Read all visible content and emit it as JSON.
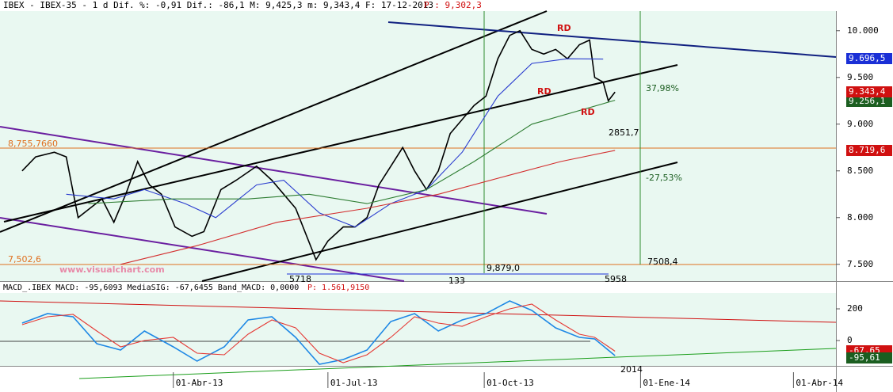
{
  "chart_data": [
    {
      "type": "line",
      "title": "IBEX - IBEX-35 -  1 d Dif. %: -0,91 Dif.: -86,1 M: 9,425,3 m: 9,343,4 F: 17-12-2013",
      "price_label": "P : 9,302,3",
      "xlim": [
        "2012-12-20",
        "2014-04-26"
      ],
      "xticks": [
        {
          "value": "2013-04-01",
          "label": "01-Abr-13"
        },
        {
          "value": "2013-07-01",
          "label": "01-Jul-13"
        },
        {
          "value": "2013-10-01",
          "label": "01-Oct-13"
        },
        {
          "value": "2014-01-01",
          "label": "01-Ene-14"
        },
        {
          "value": "2014-04-01",
          "label": "01-Abr-14"
        }
      ],
      "ylim": [
        7320,
        10210
      ],
      "yticks": [
        {
          "value": 7500,
          "label": "7.500"
        },
        {
          "value": 8000,
          "label": "8.000"
        },
        {
          "value": 8500,
          "label": "8.500"
        },
        {
          "value": 9000,
          "label": "9.000"
        },
        {
          "value": 9500,
          "label": "9.500"
        },
        {
          "value": 10000,
          "label": "10.000"
        }
      ],
      "series": [
        {
          "color": "#000000",
          "x": [
            "2013-01-02",
            "2013-01-10",
            "2013-01-21",
            "2013-01-28",
            "2013-02-04",
            "2013-02-11",
            "2013-02-18",
            "2013-02-25",
            "2013-03-04",
            "2013-03-11",
            "2013-03-18",
            "2013-03-25",
            "2013-04-02",
            "2013-04-12",
            "2013-04-19",
            "2013-04-29",
            "2013-05-08",
            "2013-05-20",
            "2013-05-29",
            "2013-06-05",
            "2013-06-12",
            "2013-06-24",
            "2013-07-01",
            "2013-07-10",
            "2013-07-17",
            "2013-07-24",
            "2013-07-31",
            "2013-08-07",
            "2013-08-14",
            "2013-08-21",
            "2013-08-28",
            "2013-09-04",
            "2013-09-11",
            "2013-09-18",
            "2013-09-25",
            "2013-10-02",
            "2013-10-09",
            "2013-10-16",
            "2013-10-22",
            "2013-10-29",
            "2013-11-05",
            "2013-11-12",
            "2013-11-19",
            "2013-11-26",
            "2013-12-02",
            "2013-12-05",
            "2013-12-10",
            "2013-12-13",
            "2013-12-17"
          ],
          "values": [
            8500,
            8650,
            8700,
            8650,
            8000,
            8100,
            8200,
            7950,
            8250,
            8600,
            8350,
            8250,
            7900,
            7800,
            7850,
            8300,
            8400,
            8550,
            8400,
            8250,
            8100,
            7550,
            7750,
            7900,
            7900,
            8000,
            8350,
            8550,
            8750,
            8500,
            8300,
            8500,
            8900,
            9050,
            9200,
            9300,
            9700,
            9950,
            10000,
            9800,
            9750,
            9800,
            9700,
            9850,
            9900,
            9500,
            9450,
            9250,
            9343.4
          ]
        },
        {
          "color": "#2a3ccf",
          "x": [
            "2013-01-28",
            "2013-02-25",
            "2013-03-15",
            "2013-04-08",
            "2013-04-26",
            "2013-05-20",
            "2013-06-05",
            "2013-06-26",
            "2013-07-17",
            "2013-08-07",
            "2013-08-28",
            "2013-09-18",
            "2013-10-09",
            "2013-10-29",
            "2013-11-19",
            "2013-12-10"
          ],
          "values": [
            8250,
            8200,
            8300,
            8150,
            8000,
            8350,
            8400,
            8050,
            7900,
            8150,
            8300,
            8700,
            9300,
            9650,
            9700,
            9696.5
          ]
        },
        {
          "color": "#2e7d32",
          "x": [
            "2013-02-10",
            "2013-04-01",
            "2013-05-15",
            "2013-06-20",
            "2013-07-24",
            "2013-08-28",
            "2013-09-25",
            "2013-10-29",
            "2013-12-17"
          ],
          "values": [
            8150,
            8200,
            8200,
            8250,
            8150,
            8300,
            8600,
            9000,
            9256.1
          ]
        },
        {
          "color": "#d32f2f",
          "x": [
            "2013-03-01",
            "2013-04-15",
            "2013-06-01",
            "2013-07-24",
            "2013-09-04",
            "2013-10-15",
            "2013-11-15",
            "2013-12-17"
          ],
          "values": [
            7500,
            7700,
            7950,
            8100,
            8250,
            8450,
            8600,
            8719.6
          ]
        }
      ],
      "annotations": [
        "RD",
        "RD",
        "RD",
        "37,98%",
        "2851,7",
        "-27,53%",
        "7508,4",
        "8,755,7660",
        "7,502,6",
        "9,879,0",
        "5718",
        "133",
        "5958",
        "www.visualchart.com",
        "2014"
      ],
      "axis_boxes": [
        {
          "text": "9.256,1",
          "color": "#1b5e20"
        },
        {
          "text": "9.696,5",
          "color": "#1a2fd6"
        },
        {
          "text": "9.343,4",
          "color": "#d01010"
        },
        {
          "text": "8.719,6",
          "color": "#d01010"
        }
      ]
    },
    {
      "type": "line",
      "title": "MACD_.IBEX MACD: -95,6093 MediaSIG: -67,6455 Band_MACD: 0,0000",
      "price_label": "P: 1.561,9150",
      "xlim": [
        "2012-12-20",
        "2014-04-26"
      ],
      "ylim": [
        -150,
        300
      ],
      "yticks": [
        0,
        200
      ],
      "series": [
        {
          "color": "#1e88e5",
          "x": [
            "2013-01-02",
            "2013-01-17",
            "2013-02-01",
            "2013-02-15",
            "2013-03-01",
            "2013-03-15",
            "2013-04-01",
            "2013-04-15",
            "2013-05-01",
            "2013-05-15",
            "2013-05-29",
            "2013-06-12",
            "2013-06-26",
            "2013-07-10",
            "2013-07-24",
            "2013-08-07",
            "2013-08-21",
            "2013-09-04",
            "2013-09-18",
            "2013-10-02",
            "2013-10-16",
            "2013-10-29",
            "2013-11-12",
            "2013-11-26",
            "2013-12-05",
            "2013-12-17"
          ],
          "values": [
            110,
            170,
            150,
            -20,
            -60,
            60,
            -40,
            -130,
            -40,
            130,
            150,
            20,
            -150,
            -120,
            -60,
            120,
            170,
            60,
            130,
            170,
            250,
            190,
            80,
            20,
            10,
            -95.61
          ]
        },
        {
          "color": "#e53935",
          "x": [
            "2013-01-02",
            "2013-01-17",
            "2013-02-01",
            "2013-02-15",
            "2013-03-01",
            "2013-03-15",
            "2013-04-01",
            "2013-04-15",
            "2013-05-01",
            "2013-05-15",
            "2013-05-29",
            "2013-06-12",
            "2013-06-26",
            "2013-07-10",
            "2013-07-24",
            "2013-08-07",
            "2013-08-21",
            "2013-09-04",
            "2013-09-18",
            "2013-10-02",
            "2013-10-16",
            "2013-10-29",
            "2013-11-12",
            "2013-11-26",
            "2013-12-05",
            "2013-12-17"
          ],
          "values": [
            100,
            150,
            165,
            60,
            -40,
            0,
            20,
            -80,
            -90,
            40,
            130,
            80,
            -80,
            -140,
            -90,
            20,
            150,
            110,
            90,
            150,
            200,
            230,
            130,
            40,
            20,
            -67.65
          ]
        }
      ],
      "axis_boxes": [
        {
          "text": "-67,65",
          "color": "#d01010"
        },
        {
          "text": "-95,61",
          "color": "#1b5e20"
        }
      ]
    }
  ]
}
